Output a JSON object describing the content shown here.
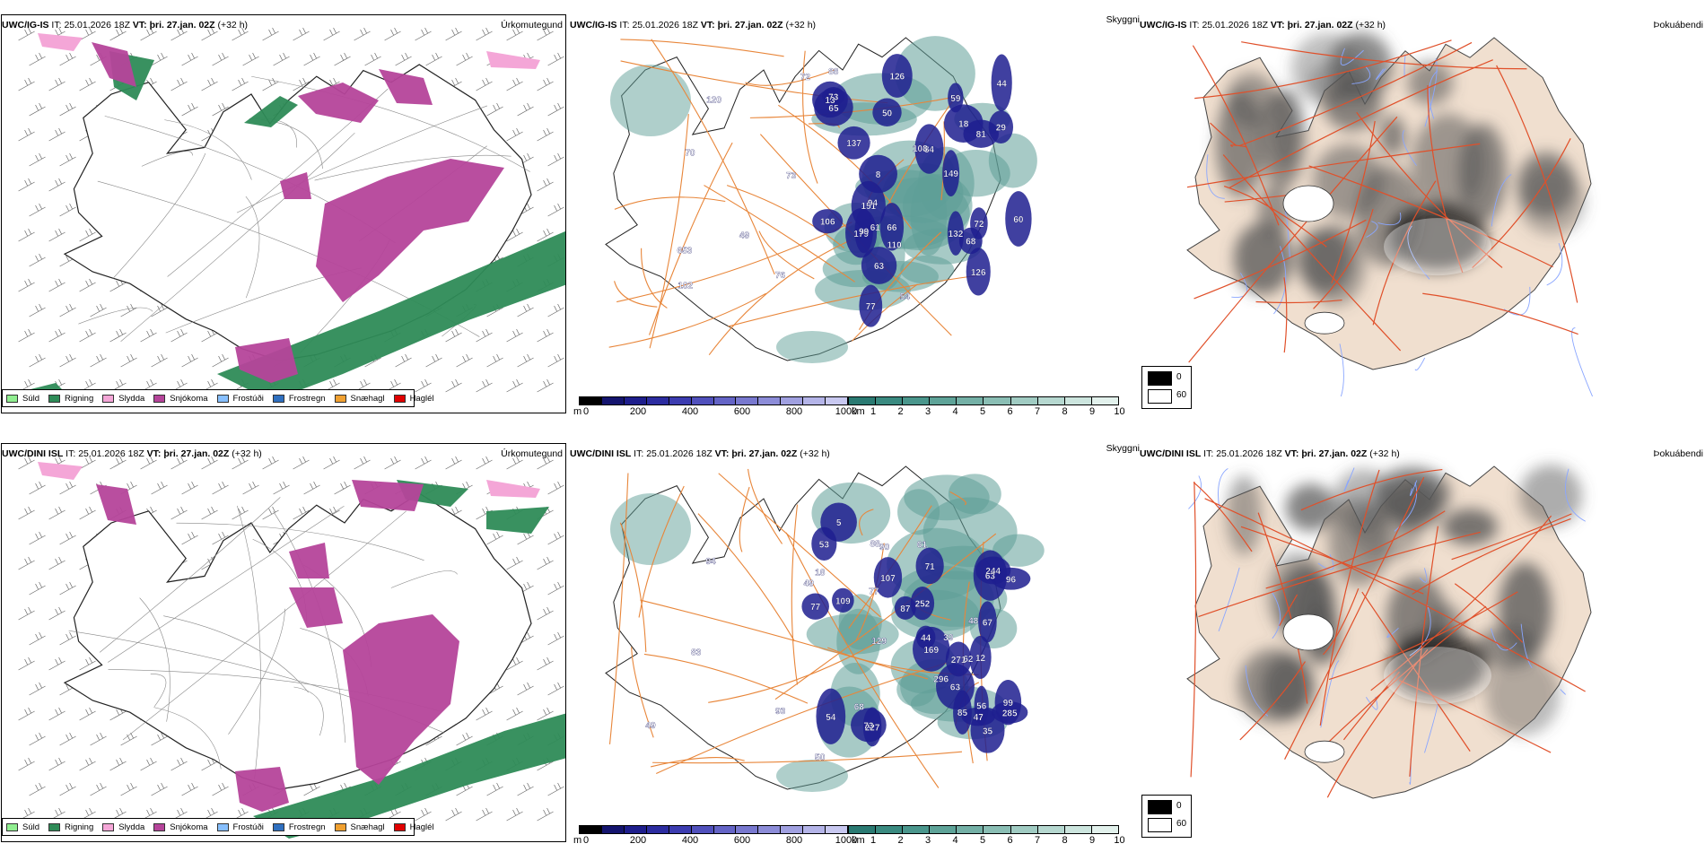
{
  "rows": [
    {
      "model": "UWC/IG-IS",
      "it_label": "IT:",
      "it_value": "25.01.2026 18Z",
      "vt_label": "VT:",
      "vt_value": "þri. 27.jan. 02Z",
      "lead": "(+32 h)",
      "labels_cloudbase": [
        "179",
        "126",
        "8",
        "63",
        "68",
        "84",
        "81",
        "59",
        "60",
        "66",
        "99",
        "77",
        "132",
        "73",
        "13",
        "126",
        "44",
        "106",
        "137",
        "50",
        "29",
        "18",
        "65",
        "151",
        "149",
        "72",
        "108",
        "72",
        "61",
        "110",
        "70",
        "94",
        "120",
        "102",
        "73",
        "88",
        "54",
        "49",
        "653",
        "76"
      ],
      "mapids": [
        "ig"
      ]
    },
    {
      "model": "UWC/DINI ISL",
      "it_label": "IT:",
      "it_value": "25.01.2026 18Z",
      "vt_label": "VT:",
      "vt_value": "þri. 27.jan. 02Z",
      "lead": "(+32 h)",
      "labels_cloudbase": [
        "227",
        "12",
        "73",
        "99",
        "54",
        "5",
        "71",
        "44",
        "53",
        "56",
        "63",
        "85",
        "107",
        "63",
        "47",
        "244",
        "271",
        "285",
        "77",
        "169",
        "67",
        "87",
        "96",
        "109",
        "35",
        "252",
        "18",
        "48",
        "296",
        "129",
        "62",
        "90",
        "68",
        "61",
        "94",
        "77",
        "39",
        "88",
        "83",
        "50",
        "49",
        "93",
        "49"
      ],
      "mapids": [
        "dini"
      ]
    }
  ],
  "panel_titles": {
    "precip": "Úrkomutegund",
    "cloud": "Skyggni",
    "fog": "Þokuábendi"
  },
  "precip_legend": [
    {
      "label": "Súld",
      "color": "#90ee90"
    },
    {
      "label": "Rigning",
      "color": "#2e8b57"
    },
    {
      "label": "Slydda",
      "color": "#f4a6d7"
    },
    {
      "label": "Snjókoma",
      "color": "#b5449a"
    },
    {
      "label": "Frostúði",
      "color": "#87bfff"
    },
    {
      "label": "Frostregn",
      "color": "#2f6fbf"
    },
    {
      "label": "Snæhagl",
      "color": "#f0a030"
    },
    {
      "label": "Haglél",
      "color": "#e00000"
    }
  ],
  "cloudbase_bar": {
    "unit": "m",
    "ticks": [
      "0",
      "200",
      "400",
      "600",
      "800",
      "1000"
    ],
    "colors": [
      "#000000",
      "#14146e",
      "#1e1e8c",
      "#2c2ca0",
      "#3c3cb0",
      "#5050bc",
      "#6464c6",
      "#7878cf",
      "#8c8cd8",
      "#a0a0e0",
      "#b4b4e8",
      "#c8c8f0"
    ]
  },
  "visibility_bar": {
    "unit": "km",
    "ticks": [
      "1",
      "2",
      "3",
      "4",
      "5",
      "6",
      "7",
      "8",
      "9",
      "10"
    ],
    "colors": [
      "#2a7a72",
      "#3a8a80",
      "#4a968c",
      "#5ea398",
      "#74b0a6",
      "#8abeb4",
      "#a0cbc2",
      "#b6d8d0",
      "#cce5de",
      "#e2f1ec"
    ]
  },
  "fog_legend": {
    "items": [
      {
        "label": "0",
        "color": "#000000"
      },
      {
        "label": "60",
        "color": "#ffffff"
      }
    ]
  },
  "colors": {
    "rain": "#2e8b57",
    "snow": "#b5449a",
    "sleet": "#f4a6d7",
    "land_fog": "#f0dfcf",
    "roads": "#e8863a",
    "rivers": "#8aa6ff",
    "cloud_dark": "#1f1f8f",
    "vis_teal": "#5f9f98"
  }
}
